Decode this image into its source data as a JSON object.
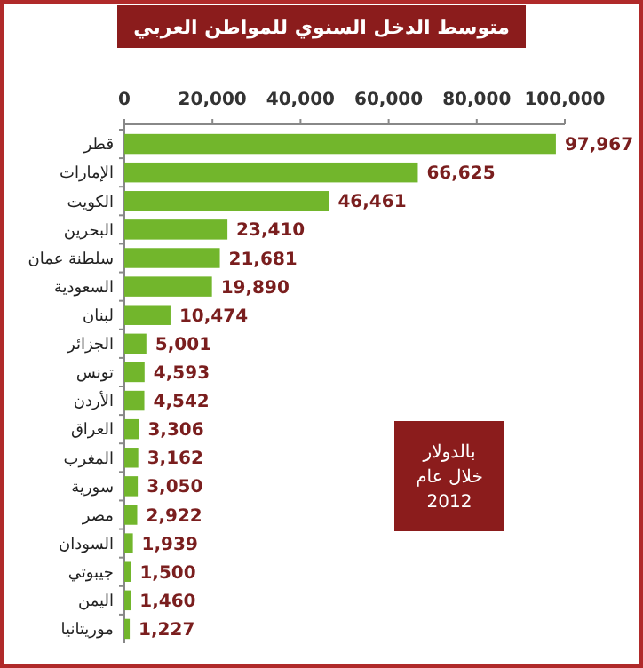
{
  "chart_data": {
    "type": "bar",
    "orientation": "horizontal",
    "title": "متوسط الدخل السنوي للمواطن العربي",
    "categories": [
      "قطر",
      "الإمارات",
      "الكويت",
      "البحرين",
      "سلطنة عمان",
      "السعودية",
      "لبنان",
      "الجزائر",
      "تونس",
      "الأردن",
      "العراق",
      "المغرب",
      "سورية",
      "مصر",
      "السودان",
      "جيبوتي",
      "اليمن",
      "موريتانيا"
    ],
    "values": [
      97967,
      66625,
      46461,
      23410,
      21681,
      19890,
      10474,
      5001,
      4593,
      4542,
      3306,
      3162,
      3050,
      2922,
      1939,
      1500,
      1460,
      1227
    ],
    "color": "#72b62c",
    "xlim": [
      0,
      100000
    ],
    "xticks": [
      {
        "value": 0,
        "label": "0"
      },
      {
        "value": 20000,
        "label": "20,000"
      },
      {
        "value": 40000,
        "label": "40,000"
      },
      {
        "value": 60000,
        "label": "60,000"
      },
      {
        "value": 80000,
        "label": "80,000"
      },
      {
        "value": 100000,
        "label": "100,000"
      }
    ],
    "value_labels": [
      "97,967",
      "66,625",
      "46,461",
      "23,410",
      "21,681",
      "19,890",
      "10,474",
      "5,001",
      "4,593",
      "4,542",
      "3,306",
      "3,162",
      "3,050",
      "2,922",
      "1,939",
      "1,500",
      "1,460",
      "1,227"
    ],
    "annotations": [
      "بالدولار\nخلال عام\n2012"
    ]
  }
}
